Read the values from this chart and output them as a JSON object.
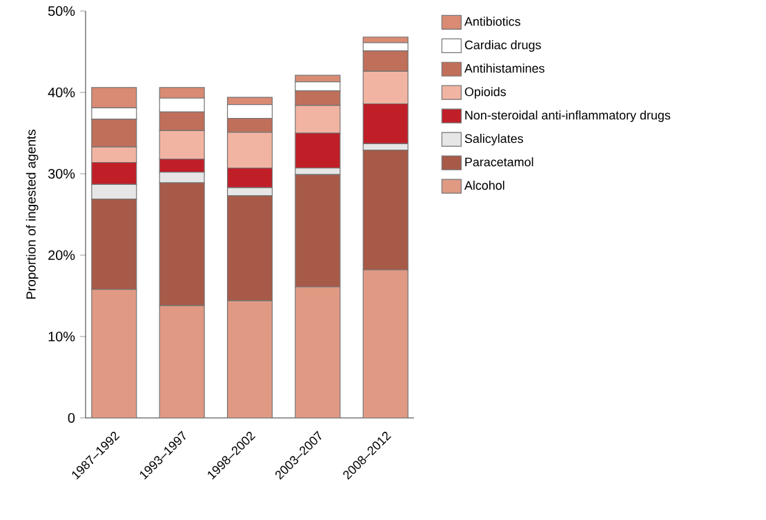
{
  "chart_data": {
    "type": "bar",
    "stacked": true,
    "ylabel": "Proportion of ingested agents",
    "categories": [
      "1987–1992",
      "1993–1997",
      "1998–2002",
      "2003–2007",
      "2008–2012"
    ],
    "series": [
      {
        "name": "Alcohol",
        "color": "#e09a84",
        "values": [
          15.8,
          13.8,
          14.4,
          16.1,
          18.2
        ]
      },
      {
        "name": "Paracetamol",
        "color": "#a85a48",
        "values": [
          11.1,
          15.1,
          12.9,
          13.8,
          14.7
        ]
      },
      {
        "name": "Salicylates",
        "color": "#e6e6e6",
        "values": [
          1.8,
          1.3,
          1.0,
          0.8,
          0.8
        ]
      },
      {
        "name": "Non-steroidal anti-inflammatory drugs",
        "color": "#c01f28",
        "values": [
          2.7,
          1.6,
          2.4,
          4.3,
          4.9
        ]
      },
      {
        "name": "Opioids",
        "color": "#f2b4a2",
        "values": [
          1.9,
          3.5,
          4.4,
          3.4,
          4.0
        ]
      },
      {
        "name": "Antihistamines",
        "color": "#c06f5a",
        "values": [
          3.4,
          2.3,
          1.7,
          1.8,
          2.5
        ]
      },
      {
        "name": "Cardiac drugs",
        "color": "#ffffff",
        "values": [
          1.4,
          1.7,
          1.7,
          1.1,
          1.0
        ]
      },
      {
        "name": "Antibiotics",
        "color": "#d98b73",
        "values": [
          2.5,
          1.3,
          0.9,
          0.8,
          0.7
        ]
      }
    ],
    "ylim": [
      0,
      50
    ],
    "yticks": [
      0,
      {
        "value": 10,
        "label": "10%"
      },
      {
        "value": 20,
        "label": "20%"
      },
      {
        "value": 30,
        "label": "30%"
      },
      {
        "value": 40,
        "label": "40%"
      },
      {
        "value": 50,
        "label": "50%"
      }
    ],
    "legend": "right"
  }
}
